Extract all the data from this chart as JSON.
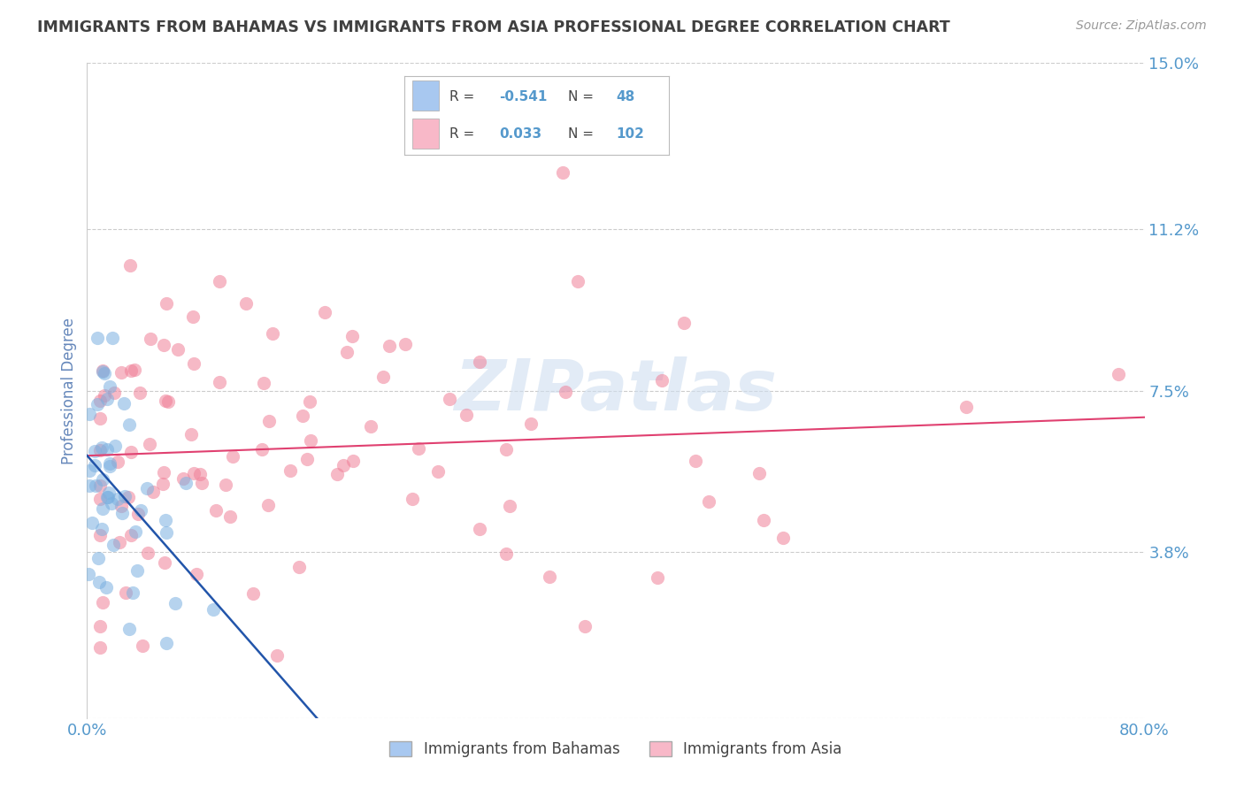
{
  "title": "IMMIGRANTS FROM BAHAMAS VS IMMIGRANTS FROM ASIA PROFESSIONAL DEGREE CORRELATION CHART",
  "source": "Source: ZipAtlas.com",
  "ylabel": "Professional Degree",
  "xlim": [
    0.0,
    0.8
  ],
  "ylim": [
    0.0,
    0.15
  ],
  "ytick_vals": [
    0.0,
    0.038,
    0.075,
    0.112,
    0.15
  ],
  "ytick_labels": [
    "",
    "3.8%",
    "7.5%",
    "11.2%",
    "15.0%"
  ],
  "xtick_vals": [
    0.0,
    0.8
  ],
  "xtick_labels": [
    "0.0%",
    "80.0%"
  ],
  "legend_R1": "-0.541",
  "legend_N1": "48",
  "legend_R2": "0.033",
  "legend_N2": "102",
  "color_bahamas_patch": "#a8c8f0",
  "color_asia_patch": "#f8b8c8",
  "scatter_color_bahamas": "#7ab0e0",
  "scatter_color_asia": "#f08098",
  "trendline_color_bahamas": "#2255aa",
  "trendline_color_asia": "#e04070",
  "watermark": "ZIPatlas",
  "background_color": "#ffffff",
  "grid_color": "#cccccc",
  "title_color": "#404040",
  "axis_label_color": "#6688bb",
  "tick_label_color": "#5599cc",
  "legend_label1": "Immigrants from Bahamas",
  "legend_label2": "Immigrants from Asia"
}
